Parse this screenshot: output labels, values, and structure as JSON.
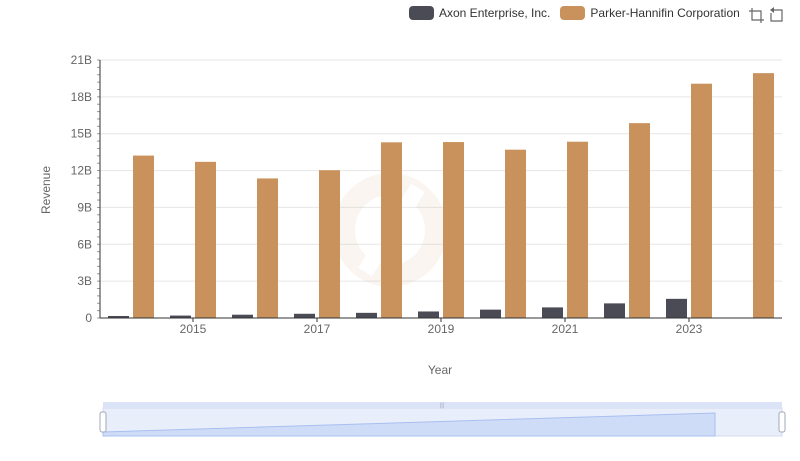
{
  "legend": [
    {
      "name": "Axon Enterprise, Inc.",
      "color": "#4a4b55"
    },
    {
      "name": "Parker-Hannifin Corporation",
      "color": "#c9915c"
    }
  ],
  "toolbox": {
    "icons": [
      "zoom-icon",
      "restore-icon"
    ]
  },
  "chart_data": {
    "type": "bar",
    "xlabel": "Year",
    "ylabel": "Revenue",
    "ylim": [
      0,
      21000000000
    ],
    "y_ticks": [
      "0",
      "3B",
      "6B",
      "9B",
      "12B",
      "15B",
      "18B",
      "21B"
    ],
    "categories": [
      "2014",
      "2015",
      "2016",
      "2017",
      "2018",
      "2019",
      "2020",
      "2021",
      "2022",
      "2023",
      "2024"
    ],
    "x_tick_labels": [
      "2015",
      "2017",
      "2019",
      "2021",
      "2023"
    ],
    "series": [
      {
        "name": "Axon Enterprise, Inc.",
        "values": [
          164500000,
          197900000,
          268200000,
          343800000,
          420100000,
          530900000,
          681000000,
          863400000,
          1190000000,
          1560000000,
          null
        ]
      },
      {
        "name": "Parker-Hannifin Corporation",
        "values": [
          13220000000,
          12710000000,
          11360000000,
          12030000000,
          14300000000,
          14320000000,
          13700000000,
          14350000000,
          15860000000,
          19070000000,
          19930000000
        ]
      }
    ],
    "grid": true,
    "legend_position": "top-right",
    "data_zoom": true
  }
}
